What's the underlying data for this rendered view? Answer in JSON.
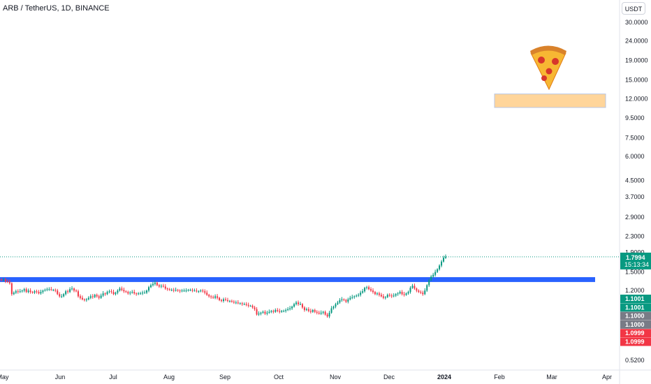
{
  "header": {
    "symbol_title": "ARB / TetherUS, 1D, BINANCE"
  },
  "price_axis": {
    "currency": "USDT",
    "current_price": "1.7994",
    "countdown": "15:13:34",
    "markers": [
      {
        "label": "1.1001",
        "color": "#089981"
      },
      {
        "label": "1.1001",
        "color": "#089981"
      },
      {
        "label": "1.1000",
        "color": "#787b86"
      },
      {
        "label": "1.1000",
        "color": "#787b86"
      },
      {
        "label": "1.0999",
        "color": "#f23645"
      },
      {
        "label": "1.0999",
        "color": "#f23645"
      }
    ]
  },
  "annotations": {
    "pizza_icon": "pizza-icon",
    "support_zone": {
      "price_low": 1.33,
      "price_high": 1.41,
      "color": "#2962ff"
    },
    "target_zone": {
      "price_low": 10.8,
      "price_high": 12.7,
      "color": "#ffd59a"
    }
  },
  "colors": {
    "up": "#089981",
    "down": "#f23645",
    "grid": "#f0f3fa"
  },
  "chart_data": {
    "type": "candlestick",
    "title": "ARB / TetherUS, 1D, BINANCE",
    "y_scale": "log",
    "ylim": [
      0.5,
      33
    ],
    "y_ticks": [
      "30.0000",
      "24.0000",
      "19.0000",
      "15.0000",
      "12.0000",
      "9.5000",
      "7.5000",
      "6.0000",
      "4.5000",
      "3.7000",
      "2.9000",
      "2.3000",
      "1.9000",
      "1.5000",
      "1.2000",
      "0.5200"
    ],
    "x_ticks": [
      "May",
      "Jun",
      "Jul",
      "Aug",
      "Sep",
      "Oct",
      "Nov",
      "Dec",
      "2024",
      "Feb",
      "Mar",
      "Apr"
    ],
    "last_price": 1.7994,
    "close_series": [
      1.36,
      1.37,
      1.34,
      1.33,
      1.31,
      1.15,
      1.17,
      1.19,
      1.18,
      1.19,
      1.2,
      1.22,
      1.18,
      1.2,
      1.18,
      1.17,
      1.19,
      1.18,
      1.16,
      1.18,
      1.2,
      1.21,
      1.22,
      1.22,
      1.21,
      1.21,
      1.2,
      1.15,
      1.12,
      1.12,
      1.15,
      1.19,
      1.18,
      1.22,
      1.23,
      1.2,
      1.19,
      1.12,
      1.1,
      1.08,
      1.07,
      1.08,
      1.1,
      1.12,
      1.11,
      1.14,
      1.12,
      1.1,
      1.13,
      1.16,
      1.15,
      1.18,
      1.19,
      1.18,
      1.15,
      1.17,
      1.2,
      1.23,
      1.21,
      1.19,
      1.18,
      1.16,
      1.17,
      1.18,
      1.16,
      1.15,
      1.16,
      1.16,
      1.17,
      1.17,
      1.2,
      1.25,
      1.28,
      1.3,
      1.32,
      1.28,
      1.26,
      1.27,
      1.26,
      1.23,
      1.22,
      1.21,
      1.21,
      1.2,
      1.21,
      1.2,
      1.19,
      1.2,
      1.2,
      1.2,
      1.21,
      1.21,
      1.2,
      1.2,
      1.19,
      1.19,
      1.2,
      1.19,
      1.17,
      1.14,
      1.12,
      1.11,
      1.1,
      1.12,
      1.1,
      1.07,
      1.06,
      1.08,
      1.07,
      1.06,
      1.06,
      1.05,
      1.04,
      1.04,
      1.03,
      1.03,
      1.02,
      1.02,
      1.01,
      1.0,
      1.0,
      0.98,
      0.96,
      0.9,
      0.91,
      0.92,
      0.93,
      0.91,
      0.92,
      0.93,
      0.94,
      0.93,
      0.95,
      0.94,
      0.93,
      0.94,
      0.94,
      0.95,
      0.96,
      0.97,
      0.99,
      1.02,
      1.04,
      1.02,
      1.02,
      0.98,
      0.95,
      0.96,
      0.94,
      0.93,
      0.95,
      0.93,
      0.92,
      0.91,
      0.92,
      0.93,
      0.9,
      0.88,
      0.92,
      0.97,
      0.99,
      1.02,
      1.04,
      1.07,
      1.08,
      1.07,
      1.05,
      1.08,
      1.1,
      1.11,
      1.12,
      1.13,
      1.14,
      1.17,
      1.19,
      1.24,
      1.25,
      1.22,
      1.2,
      1.18,
      1.15,
      1.16,
      1.14,
      1.12,
      1.1,
      1.11,
      1.14,
      1.13,
      1.12,
      1.13,
      1.15,
      1.16,
      1.18,
      1.15,
      1.14,
      1.16,
      1.18,
      1.24,
      1.27,
      1.23,
      1.2,
      1.18,
      1.17,
      1.15,
      1.2,
      1.28,
      1.36,
      1.42,
      1.45,
      1.5,
      1.55,
      1.62,
      1.7,
      1.78,
      1.8
    ]
  }
}
